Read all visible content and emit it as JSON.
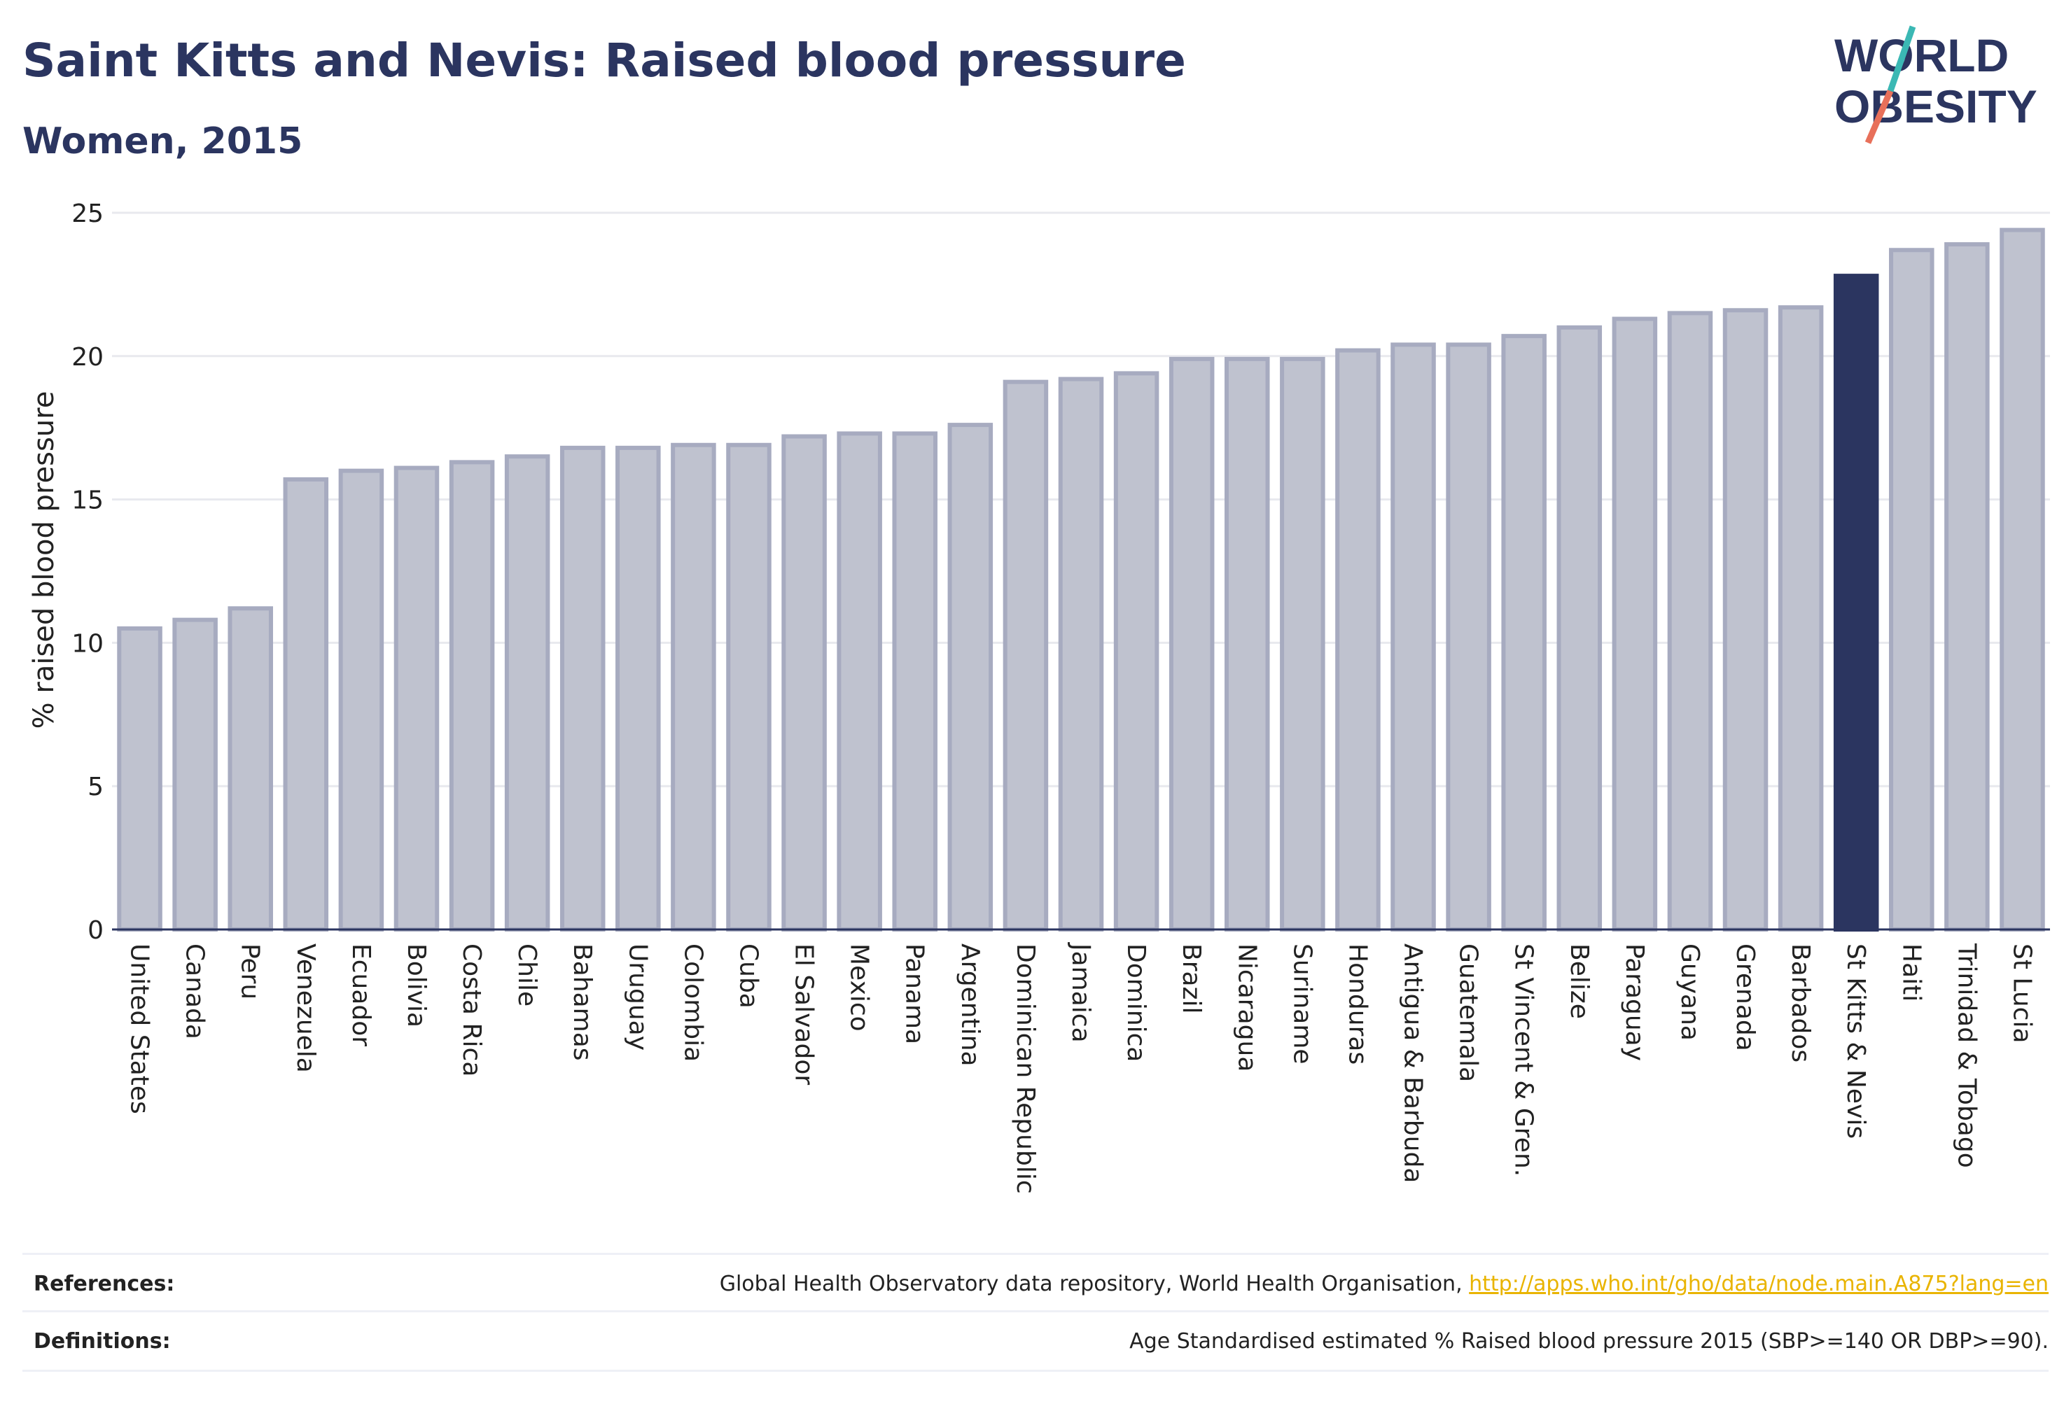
{
  "title": "Saint Kitts and Nevis: Raised blood pressure",
  "subtitle": "Women, 2015",
  "logo": {
    "line1": "WORLD",
    "line2": "OBESITY",
    "accent_teal": "#3bb8b4",
    "accent_coral": "#e8705a"
  },
  "colors": {
    "bar_fill": "#bfc2cf",
    "bar_stroke": "#a7abc0",
    "highlight": "#2b3560",
    "grid": "#e8e9ee",
    "axis_text": "#222222"
  },
  "chart_data": {
    "type": "bar",
    "ylabel": "% raised blood pressure",
    "xlabel": "",
    "ylim": [
      0,
      25
    ],
    "yticks": [
      0,
      5,
      10,
      15,
      20,
      25
    ],
    "grid": true,
    "highlight_category": "St Kitts & Nevis",
    "categories": [
      "United States",
      "Canada",
      "Peru",
      "Venezuela",
      "Ecuador",
      "Bolivia",
      "Costa Rica",
      "Chile",
      "Bahamas",
      "Uruguay",
      "Colombia",
      "Cuba",
      "El Salvador",
      "Mexico",
      "Panama",
      "Argentina",
      "Dominican Republic",
      "Jamaica",
      "Dominica",
      "Brazil",
      "Nicaragua",
      "Suriname",
      "Honduras",
      "Antigua & Barbuda",
      "Guatemala",
      "St Vincent & Gren.",
      "Belize",
      "Paraguay",
      "Guyana",
      "Grenada",
      "Barbados",
      "St Kitts & Nevis",
      "Haiti",
      "Trinidad & Tobago",
      "St Lucia"
    ],
    "values": [
      10.5,
      10.8,
      11.2,
      15.7,
      16.0,
      16.1,
      16.3,
      16.5,
      16.8,
      16.8,
      16.9,
      16.9,
      17.2,
      17.3,
      17.3,
      17.6,
      19.1,
      19.2,
      19.4,
      19.9,
      19.9,
      19.9,
      20.2,
      20.4,
      20.4,
      20.7,
      21.0,
      21.3,
      21.5,
      21.6,
      21.7,
      22.8,
      23.7,
      23.9,
      24.4
    ]
  },
  "footer": {
    "references_label": "References:",
    "references_text": "Global Health Observatory data repository, World Health Organisation, ",
    "references_link": "http://apps.who.int/gho/data/node.main.A875?lang=en",
    "definitions_label": "Definitions:",
    "definitions_text": "Age Standardised estimated % Raised blood pressure 2015 (SBP>=140 OR DBP>=90)."
  }
}
